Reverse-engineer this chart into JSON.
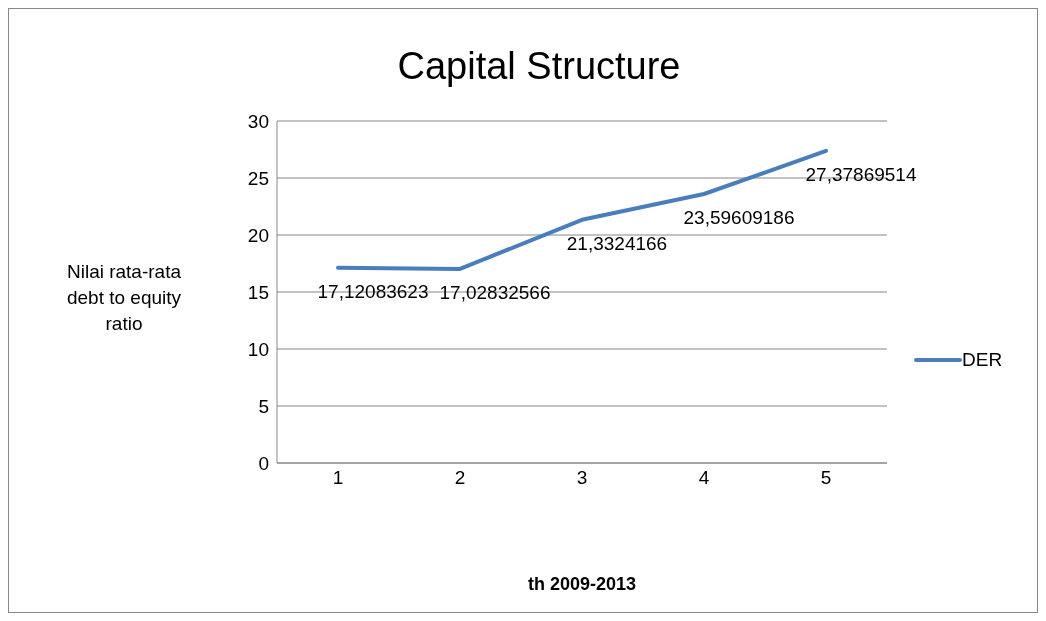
{
  "chart_data": {
    "type": "line",
    "title": "Capital Structure",
    "xlabel": "th 2009-2013",
    "ylabel": "Nilai rata-rata debt to equity ratio",
    "categories": [
      "1",
      "2",
      "3",
      "4",
      "5"
    ],
    "series": [
      {
        "name": "DER",
        "color": "#4a7ebb",
        "values": [
          17.12083623,
          17.02832566,
          21.3324166,
          23.59609186,
          27.37869514
        ],
        "value_labels": [
          "17,12083623",
          "17,02832566",
          "21,3324166",
          "23,59609186",
          "27,37869514"
        ]
      }
    ],
    "ylim": [
      0,
      30
    ],
    "yticks": [
      0,
      5,
      10,
      15,
      20,
      25,
      30
    ],
    "grid": "y",
    "legend": "right",
    "marker": "none",
    "line_style": "solid"
  }
}
